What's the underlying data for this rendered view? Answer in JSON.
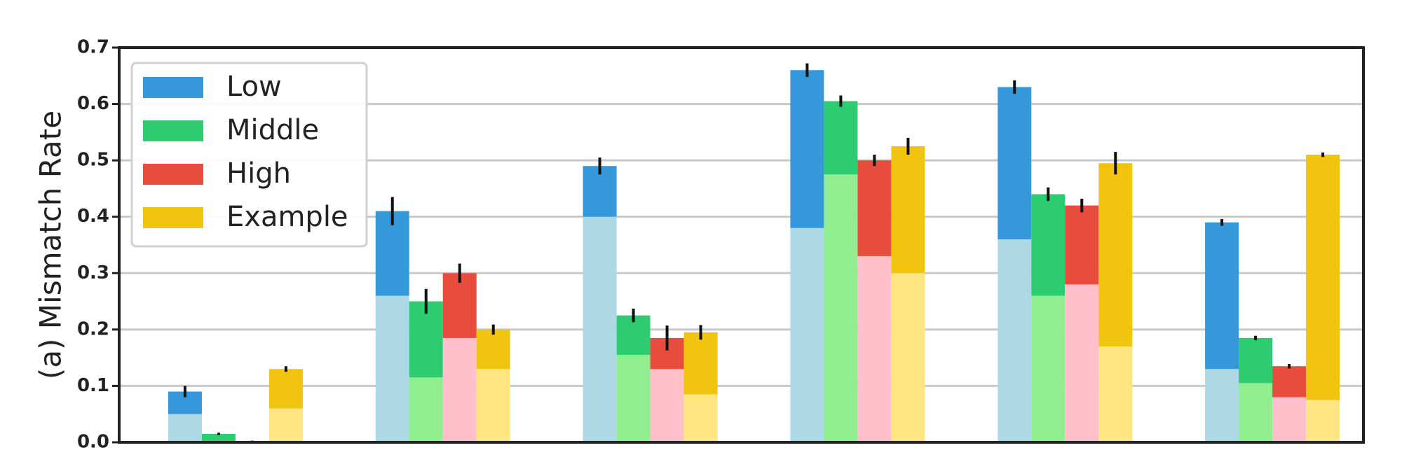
{
  "chart_data": {
    "type": "bar",
    "stacked_segments": "lower light segment + upper solid segment per bar",
    "ylabel": "(a) Mismatch Rate",
    "ylim": [
      0,
      0.7
    ],
    "yticks": [
      "0.0",
      "0.1",
      "0.2",
      "0.3",
      "0.4",
      "0.5",
      "0.6",
      "0.7"
    ],
    "grid": "horizontal",
    "legend_position": "top-left",
    "groups": 6,
    "series": [
      {
        "name": "Low",
        "color": "#3498db",
        "light_color": "#add8e6",
        "totals": [
          0.09,
          0.41,
          0.49,
          0.66,
          0.63,
          0.39
        ],
        "base": [
          0.05,
          0.26,
          0.4,
          0.38,
          0.36,
          0.13
        ],
        "err": [
          0.01,
          0.025,
          0.015,
          0.012,
          0.012,
          0.006
        ]
      },
      {
        "name": "Middle",
        "color": "#2ecc71",
        "light_color": "#90ee90",
        "totals": [
          0.015,
          0.25,
          0.225,
          0.605,
          0.44,
          0.185
        ],
        "base": [
          0.0,
          0.115,
          0.155,
          0.475,
          0.26,
          0.105
        ],
        "err": [
          0.002,
          0.022,
          0.012,
          0.01,
          0.012,
          0.004
        ]
      },
      {
        "name": "High",
        "color": "#e74c3c",
        "light_color": "#ffc0cb",
        "totals": [
          0.002,
          0.3,
          0.185,
          0.5,
          0.42,
          0.135
        ],
        "base": [
          0.0,
          0.185,
          0.13,
          0.33,
          0.28,
          0.08
        ],
        "err": [
          0.001,
          0.017,
          0.022,
          0.01,
          0.012,
          0.004
        ]
      },
      {
        "name": "Example",
        "color": "#f1c40f",
        "light_color": "#ffe680",
        "totals": [
          0.13,
          0.2,
          0.195,
          0.525,
          0.495,
          0.51
        ],
        "base": [
          0.06,
          0.13,
          0.085,
          0.3,
          0.17,
          0.075
        ],
        "err": [
          0.005,
          0.009,
          0.013,
          0.015,
          0.02,
          0.004
        ]
      }
    ]
  }
}
